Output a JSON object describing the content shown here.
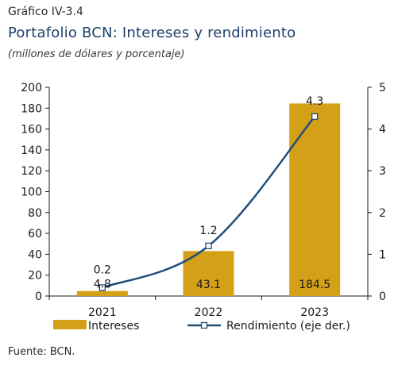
{
  "figure_label": "Gráfico IV-3.4",
  "title": "Portafolio BCN: Intereses y rendimiento",
  "subtitle": "(millones de dólares y porcentaje)",
  "source": "Fuente: BCN.",
  "colors": {
    "bars": "#d4a017",
    "line": "#1f4e79",
    "marker_fill": "#ffffff"
  },
  "chart_data": {
    "type": "bar",
    "categories": [
      "2021",
      "2022",
      "2023"
    ],
    "series": [
      {
        "name": "Intereses",
        "type": "bar",
        "axis": "left",
        "values": [
          4.8,
          43.1,
          184.5
        ],
        "labels": [
          "4.8",
          "43.1",
          "184.5"
        ]
      },
      {
        "name": "Rendimiento (eje der.)",
        "type": "line",
        "axis": "right",
        "values": [
          0.2,
          1.2,
          4.3
        ],
        "labels": [
          "0.2",
          "1.2",
          "4.3"
        ]
      }
    ],
    "y_left": {
      "min": 0,
      "max": 200,
      "step": 20,
      "ticks": [
        "0",
        "20",
        "40",
        "60",
        "80",
        "100",
        "120",
        "140",
        "160",
        "180",
        "200"
      ]
    },
    "y_right": {
      "min": 0,
      "max": 5,
      "step": 1,
      "ticks": [
        "0",
        "1",
        "2",
        "3",
        "4",
        "5"
      ]
    },
    "grid": false,
    "legend_position": "bottom"
  }
}
